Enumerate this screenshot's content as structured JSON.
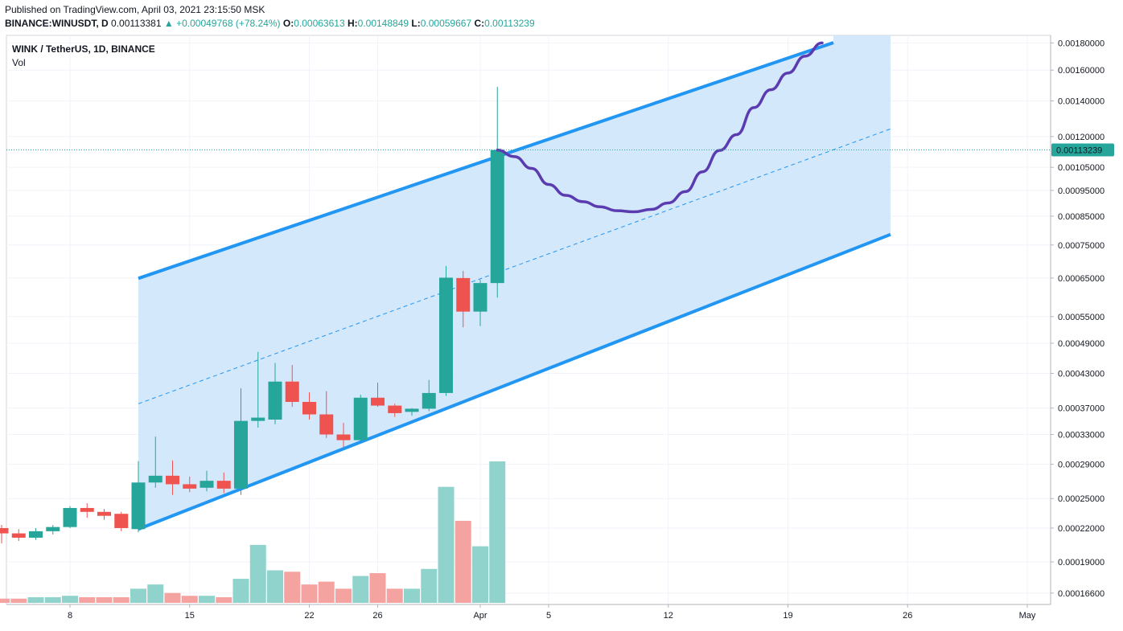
{
  "header": {
    "published": "Published on TradingView.com, April 03, 2021 23:15:50 MSK",
    "symbol": "BINANCE:WINUSDT, D",
    "last": "0.00113381",
    "change": "▲ +0.00049768 (+78.24%)",
    "o_label": "O:",
    "o": "0.00063613",
    "h_label": "H:",
    "h": "0.00148849",
    "l_label": "L:",
    "l": "0.00059667",
    "c_label": "C:",
    "c": "0.00113239"
  },
  "legend": {
    "title": "WINK / TetherUS, 1D, BINANCE",
    "volume": "Vol"
  },
  "price_label": "0.00113239",
  "colors": {
    "up": "#26a69a",
    "down": "#ef5350",
    "vol_up": "#8fd3cc",
    "vol_down": "#f5a3a1",
    "channel": "#2196f3",
    "channel_fill": "#cfe6fb",
    "projection": "#5b3bb0"
  },
  "chart_data": {
    "type": "candlestick",
    "scale": "log",
    "ylim": [
      0.000158,
      0.00186
    ],
    "y_ticks": [
      "0.00180000",
      "0.00160000",
      "0.00140000",
      "0.00120000",
      "0.00105000",
      "0.00095000",
      "0.00085000",
      "0.00075000",
      "0.00065000",
      "0.00055000",
      "0.00049000",
      "0.00043000",
      "0.00037000",
      "0.00033000",
      "0.00029000",
      "0.00025000",
      "0.00022000",
      "0.00019000",
      "0.00016600"
    ],
    "x_ticks": [
      "8",
      "15",
      "22",
      "26",
      "Apr",
      "5",
      "12",
      "19",
      "26",
      "May"
    ],
    "candles": [
      {
        "date": "2021-03-03",
        "o": 0.000212,
        "h": 0.000222,
        "l": 0.000207,
        "c": 0.00022
      },
      {
        "date": "2021-03-04",
        "o": 0.00022,
        "h": 0.000223,
        "l": 0.000206,
        "c": 0.000215
      },
      {
        "date": "2021-03-05",
        "o": 0.000215,
        "h": 0.000219,
        "l": 0.000208,
        "c": 0.000211
      },
      {
        "date": "2021-03-06",
        "o": 0.000211,
        "h": 0.00022,
        "l": 0.000209,
        "c": 0.000217
      },
      {
        "date": "2021-03-07",
        "o": 0.000217,
        "h": 0.000223,
        "l": 0.000214,
        "c": 0.000221
      },
      {
        "date": "2021-03-08",
        "o": 0.000221,
        "h": 0.000242,
        "l": 0.00022,
        "c": 0.00024
      },
      {
        "date": "2021-03-09",
        "o": 0.00024,
        "h": 0.000245,
        "l": 0.00023,
        "c": 0.000236
      },
      {
        "date": "2021-03-10",
        "o": 0.000236,
        "h": 0.000239,
        "l": 0.000228,
        "c": 0.000232
      },
      {
        "date": "2021-03-11",
        "o": 0.000234,
        "h": 0.000236,
        "l": 0.000217,
        "c": 0.00022
      },
      {
        "date": "2021-03-12",
        "o": 0.000219,
        "h": 0.000294,
        "l": 0.000216,
        "c": 0.000268
      },
      {
        "date": "2021-03-13",
        "o": 0.000268,
        "h": 0.000327,
        "l": 0.000262,
        "c": 0.000276
      },
      {
        "date": "2021-03-14",
        "o": 0.000276,
        "h": 0.000295,
        "l": 0.000254,
        "c": 0.000266
      },
      {
        "date": "2021-03-15",
        "o": 0.000266,
        "h": 0.000275,
        "l": 0.000257,
        "c": 0.000261
      },
      {
        "date": "2021-03-16",
        "o": 0.000262,
        "h": 0.000282,
        "l": 0.000258,
        "c": 0.00027
      },
      {
        "date": "2021-03-17",
        "o": 0.00027,
        "h": 0.00028,
        "l": 0.000256,
        "c": 0.000261
      },
      {
        "date": "2021-03-18",
        "o": 0.000261,
        "h": 0.000403,
        "l": 0.000254,
        "c": 0.00035
      },
      {
        "date": "2021-03-19",
        "o": 0.00035,
        "h": 0.000472,
        "l": 0.00034,
        "c": 0.000355
      },
      {
        "date": "2021-03-20",
        "o": 0.000352,
        "h": 0.00045,
        "l": 0.000345,
        "c": 0.000415
      },
      {
        "date": "2021-03-21",
        "o": 0.000415,
        "h": 0.000446,
        "l": 0.000372,
        "c": 0.00038
      },
      {
        "date": "2021-03-22",
        "o": 0.00038,
        "h": 0.000396,
        "l": 0.000352,
        "c": 0.00036
      },
      {
        "date": "2021-03-23",
        "o": 0.00036,
        "h": 0.000398,
        "l": 0.000325,
        "c": 0.00033
      },
      {
        "date": "2021-03-24",
        "o": 0.00033,
        "h": 0.000347,
        "l": 0.000312,
        "c": 0.000322
      },
      {
        "date": "2021-03-25",
        "o": 0.000322,
        "h": 0.000392,
        "l": 0.00032,
        "c": 0.000387
      },
      {
        "date": "2021-03-26",
        "o": 0.000387,
        "h": 0.000413,
        "l": 0.000372,
        "c": 0.000374
      },
      {
        "date": "2021-03-27",
        "o": 0.000374,
        "h": 0.000377,
        "l": 0.000356,
        "c": 0.000362
      },
      {
        "date": "2021-03-28",
        "o": 0.000364,
        "h": 0.00037,
        "l": 0.000358,
        "c": 0.000369
      },
      {
        "date": "2021-03-29",
        "o": 0.000369,
        "h": 0.000418,
        "l": 0.000365,
        "c": 0.000395
      },
      {
        "date": "2021-03-30",
        "o": 0.000395,
        "h": 0.000685,
        "l": 0.00039,
        "c": 0.000651
      },
      {
        "date": "2021-03-31",
        "o": 0.00065,
        "h": 0.00067,
        "l": 0.000525,
        "c": 0.000562
      },
      {
        "date": "2021-04-01",
        "o": 0.000562,
        "h": 0.000645,
        "l": 0.000528,
        "c": 0.000636
      },
      {
        "date": "2021-04-02",
        "o": 0.000636,
        "h": 0.001488,
        "l": 0.000597,
        "c": 0.001132
      }
    ],
    "volume_share": [
      0.03,
      0.03,
      0.03,
      0.04,
      0.04,
      0.05,
      0.04,
      0.04,
      0.04,
      0.1,
      0.13,
      0.07,
      0.05,
      0.05,
      0.04,
      0.17,
      0.41,
      0.23,
      0.22,
      0.13,
      0.15,
      0.1,
      0.19,
      0.21,
      0.1,
      0.1,
      0.24,
      0.82,
      0.58,
      0.4,
      1.0
    ],
    "channel": {
      "start_date": "2021-03-12",
      "end_date": "2021-04-25",
      "upper_start": 0.000649,
      "upper_end": 0.00196,
      "lower_start": 0.000219,
      "lower_end": 0.000785
    },
    "projection": [
      {
        "date": "2021-04-02",
        "value": 0.001132
      },
      {
        "date": "2021-04-03",
        "value": 0.0011
      },
      {
        "date": "2021-04-04",
        "value": 0.001045
      },
      {
        "date": "2021-04-05",
        "value": 0.000975
      },
      {
        "date": "2021-04-06",
        "value": 0.00093
      },
      {
        "date": "2021-04-07",
        "value": 0.000905
      },
      {
        "date": "2021-04-08",
        "value": 0.000885
      },
      {
        "date": "2021-04-09",
        "value": 0.00087
      },
      {
        "date": "2021-04-10",
        "value": 0.000866
      },
      {
        "date": "2021-04-11",
        "value": 0.000875
      },
      {
        "date": "2021-04-12",
        "value": 0.0009
      },
      {
        "date": "2021-04-13",
        "value": 0.000945
      },
      {
        "date": "2021-04-14",
        "value": 0.00103
      },
      {
        "date": "2021-04-15",
        "value": 0.00113
      },
      {
        "date": "2021-04-16",
        "value": 0.00121
      },
      {
        "date": "2021-04-17",
        "value": 0.00136
      },
      {
        "date": "2021-04-18",
        "value": 0.00147
      },
      {
        "date": "2021-04-19",
        "value": 0.00158
      },
      {
        "date": "2021-04-20",
        "value": 0.0017
      },
      {
        "date": "2021-04-21",
        "value": 0.0018
      }
    ]
  }
}
